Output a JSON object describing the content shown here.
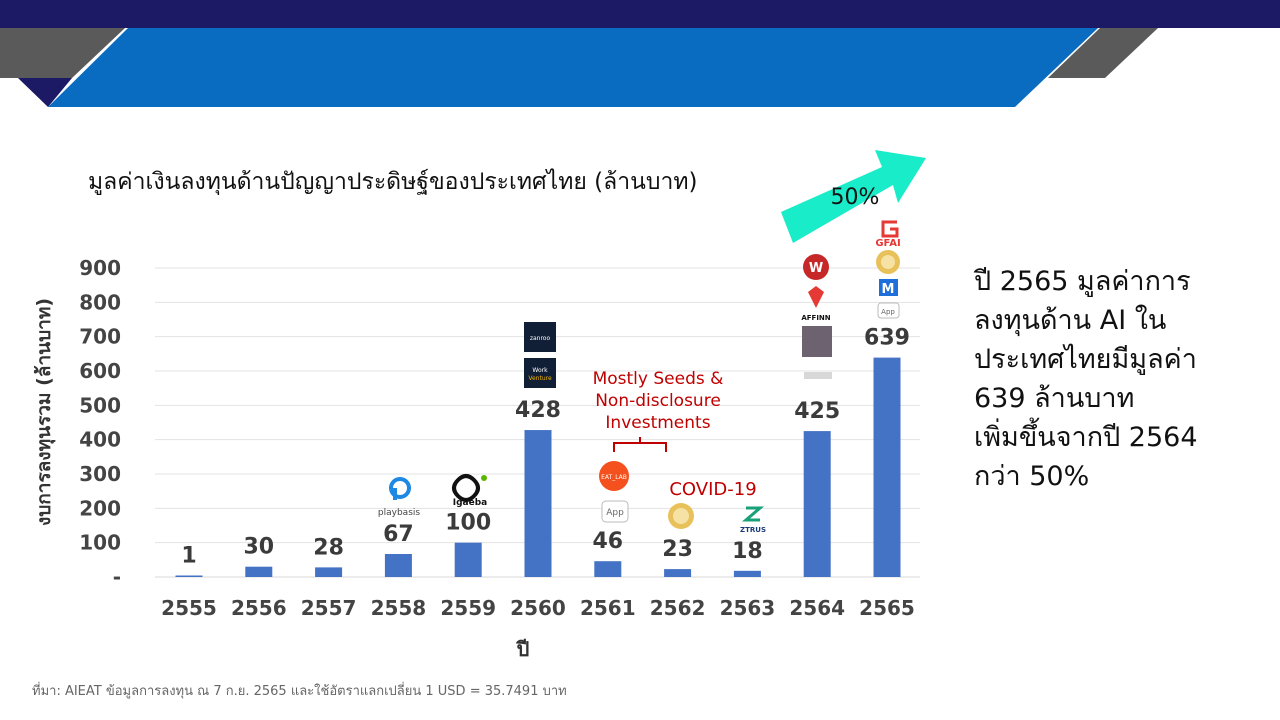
{
  "colors": {
    "navy": "#1c1a64",
    "blue": "#0a6cc0",
    "gray": "#5a5a5a",
    "bar": "#4472c4",
    "arrow": "#19ecc8",
    "red": "#c00000"
  },
  "chart_data": {
    "type": "bar",
    "title": "มูลค่าเงินลงทุนด้านปัญญาประดิษฐ์ของประเทศไทย (ล้านบาท)",
    "xlabel": "ปี",
    "ylabel": "งบการลงทุนรวม (ล้านบาท)",
    "categories": [
      "2555",
      "2556",
      "2557",
      "2558",
      "2559",
      "2560",
      "2561",
      "2562",
      "2563",
      "2564",
      "2565"
    ],
    "values": [
      1,
      30,
      28,
      67,
      100,
      428,
      46,
      23,
      18,
      425,
      639
    ],
    "value_labels": [
      "1",
      "30",
      "28",
      "67",
      "100",
      "428",
      "46",
      "23",
      "18",
      "425",
      "639"
    ],
    "y_ticks": [
      {
        "value": 0,
        "label": "-"
      },
      {
        "value": 100,
        "label": "100"
      },
      {
        "value": 200,
        "label": "200"
      },
      {
        "value": 300,
        "label": "300"
      },
      {
        "value": 400,
        "label": "400"
      },
      {
        "value": 500,
        "label": "500"
      },
      {
        "value": 600,
        "label": "600"
      },
      {
        "value": 700,
        "label": "700"
      },
      {
        "value": 800,
        "label": "800"
      },
      {
        "value": 900,
        "label": "900"
      }
    ],
    "ylim": [
      0,
      900
    ],
    "grid": true,
    "annotations": {
      "growth_label": "50%",
      "seed_note": [
        "Mostly Seeds &",
        "Non-disclosure",
        "Investments"
      ],
      "covid_note": "COVID-19"
    }
  },
  "logos": {
    "playbasis": "playbasis",
    "igaeba": "Igaeba",
    "zanroo": "zanroo",
    "workventure": [
      "Work",
      "Venture"
    ],
    "eatlab": "EAT_LAB",
    "app": "App",
    "ztrus": "ZTRUS",
    "affinn": "AFFINN",
    "gfai": "GFAI"
  },
  "side_text": [
    "ปี 2565 มูลค่าการ",
    "ลงทุนด้าน AI ใน",
    "ประเทศไทยมีมูลค่า",
    "639 ล้านบาท",
    "เพิ่มขึ้นจากปี 2564",
    "กว่า 50%"
  ],
  "source": "ที่มา: AIEAT ข้อมูลการลงทุน ณ 7 ก.ย. 2565 และใช้อัตราแลกเปลี่ยน 1 USD = 35.7491 บาท"
}
